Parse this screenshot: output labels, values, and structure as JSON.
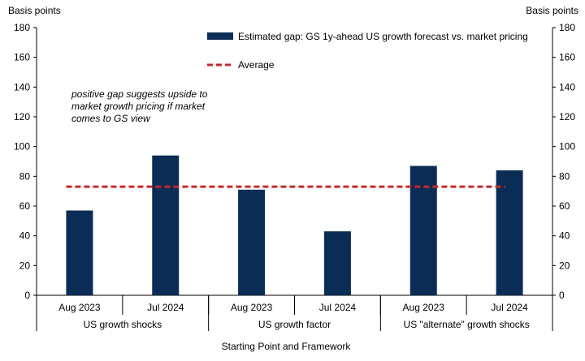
{
  "chart_data": {
    "type": "bar",
    "y_axis_label_left": "Basis points",
    "y_axis_label_right": "Basis points",
    "xlabel": "Starting Point and Framework",
    "ylim": [
      0,
      180
    ],
    "y_ticks": [
      0,
      20,
      40,
      60,
      80,
      100,
      120,
      140,
      160,
      180
    ],
    "categories": [
      "Aug 2023",
      "Jul 2024",
      "Aug 2023",
      "Jul 2024",
      "Aug 2023",
      "Jul 2024"
    ],
    "groups": [
      {
        "label": "US growth shocks",
        "count": 2
      },
      {
        "label": "US growth factor",
        "count": 2
      },
      {
        "label": "US \"alternate\" growth shocks",
        "count": 2
      }
    ],
    "series": [
      {
        "name": "Estimated gap: GS 1y-ahead US growth forecast vs. market pricing",
        "type": "bar",
        "color": "#0b2d55",
        "values": [
          57,
          94,
          71,
          43,
          87,
          84
        ]
      },
      {
        "name": "Average",
        "type": "line",
        "style": "dashed",
        "color": "#c8282b",
        "value": 73
      }
    ],
    "annotation": [
      "positive gap suggests upside to",
      "market growth pricing if market",
      "comes to GS view"
    ],
    "legend_position": "top-right"
  }
}
